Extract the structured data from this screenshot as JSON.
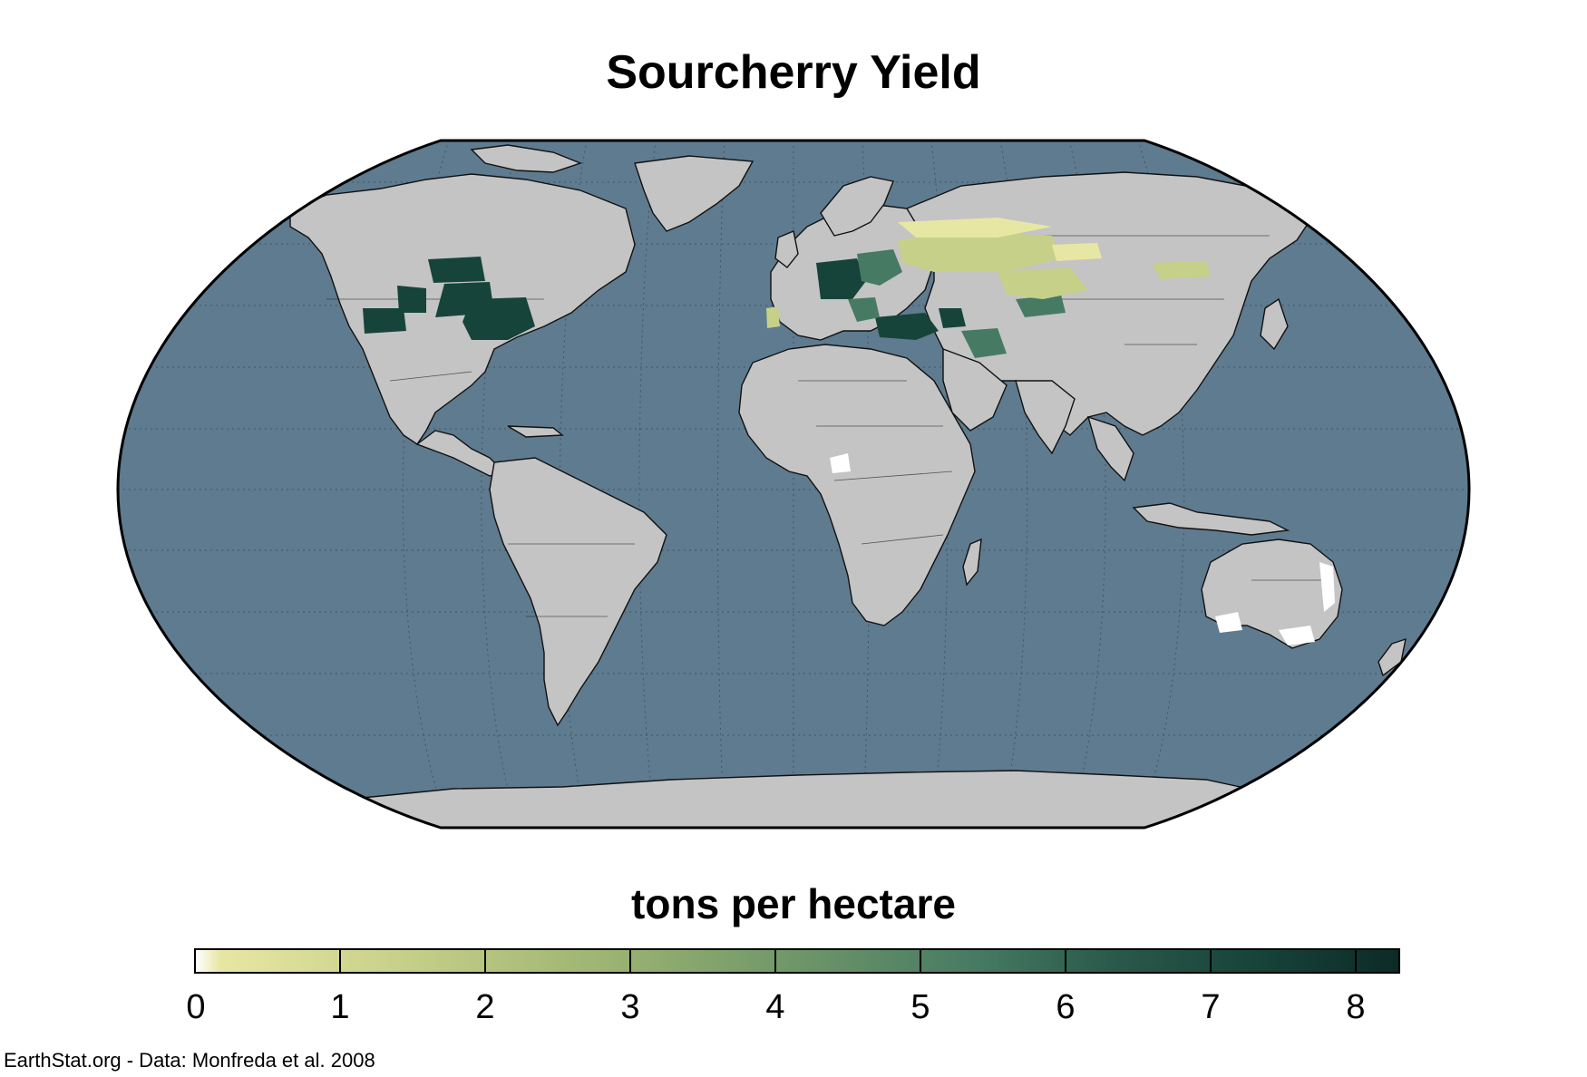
{
  "title": "Sourcherry Yield",
  "legend": {
    "label": "tons per hectare",
    "ticks": [
      "0",
      "1",
      "2",
      "3",
      "4",
      "5",
      "6",
      "7",
      "8"
    ],
    "min": 0,
    "max": 8.3,
    "palette": [
      "#ffffff",
      "#e7e7a4",
      "#c7d089",
      "#9db472",
      "#6e9668",
      "#467a63",
      "#2a5a4b",
      "#17443a",
      "#0d2a27"
    ]
  },
  "colors": {
    "ocean": "#5f7b8f",
    "land": "#c4c4c4",
    "border": "#000000",
    "no_data": "#ffffff"
  },
  "projection": "Robinson",
  "credit": "EarthStat.org - Data: Monfreda et al. 2008"
}
